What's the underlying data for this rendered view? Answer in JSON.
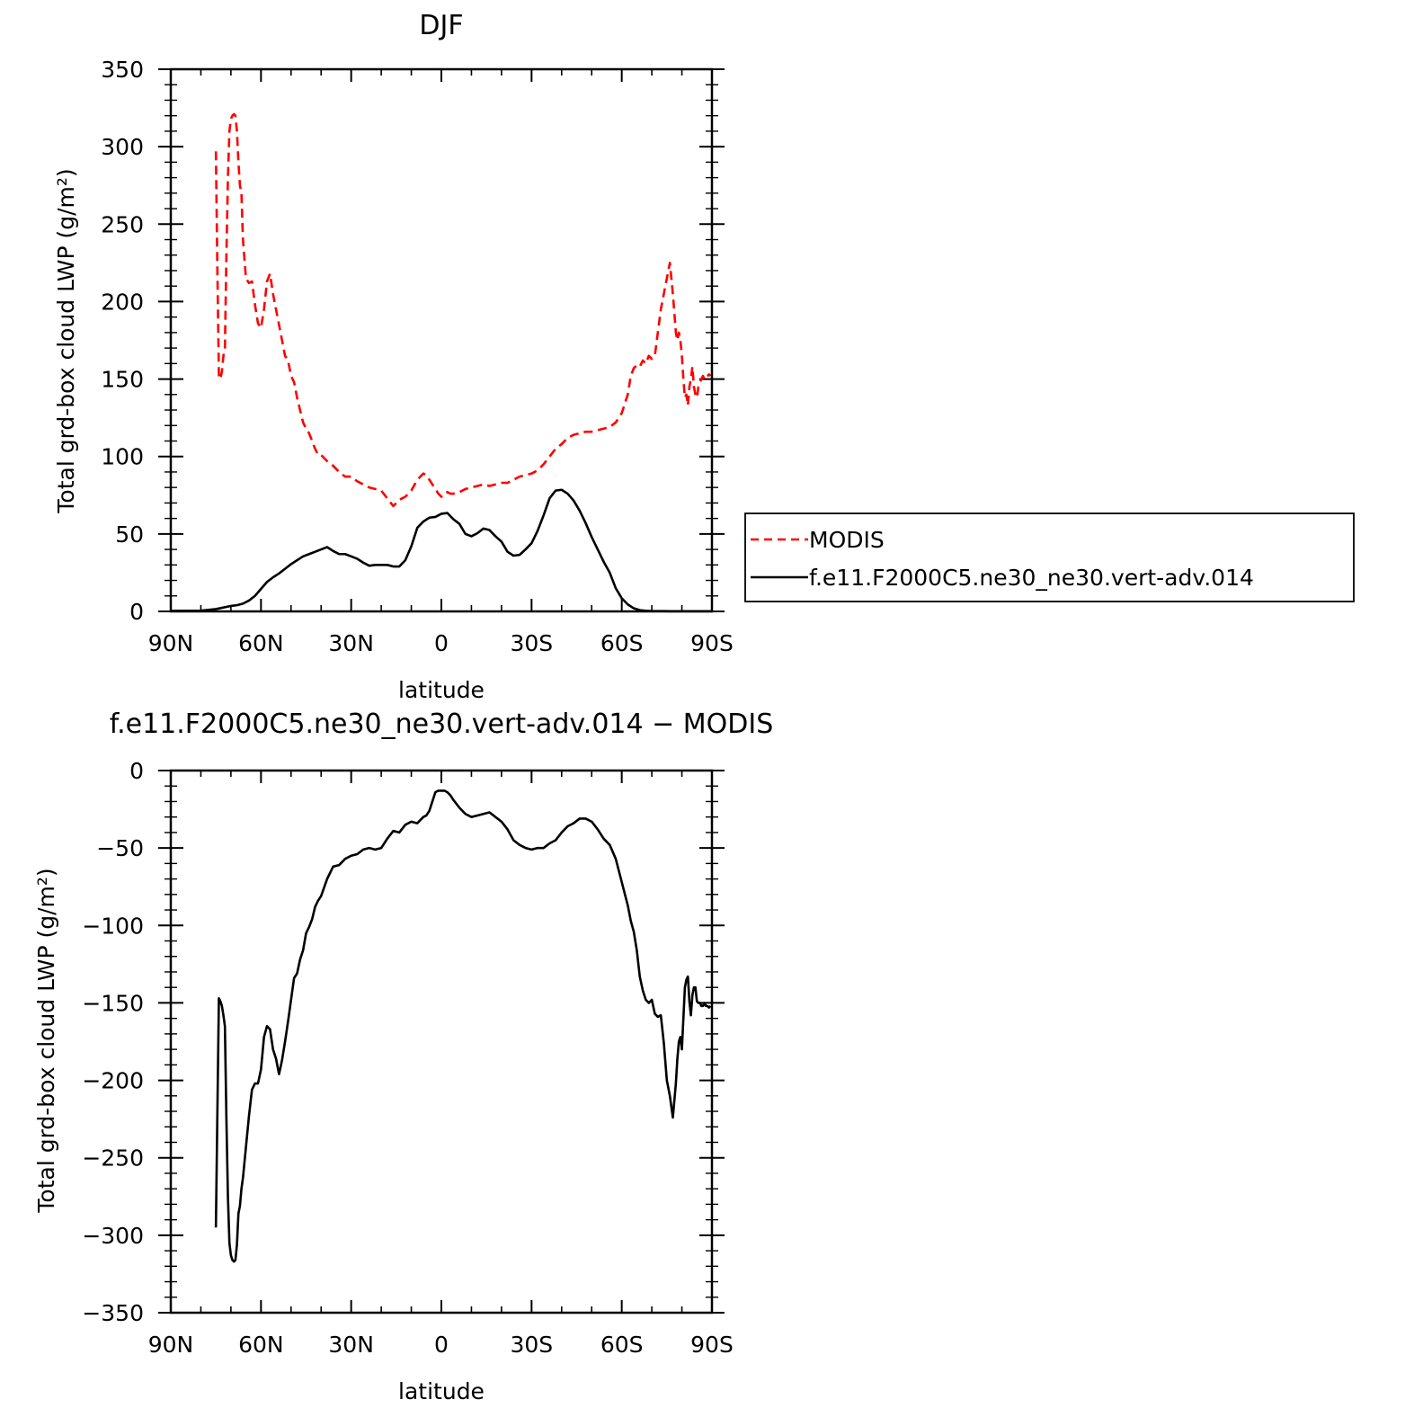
{
  "chart_data": [
    {
      "type": "line",
      "title": "DJF",
      "xlabel": "latitude",
      "ylabel": "Total grd-box cloud LWP (g/m²)",
      "xlim": [
        90,
        -90
      ],
      "ylim": [
        0,
        350
      ],
      "xticks": [
        90,
        60,
        30,
        0,
        -30,
        -60,
        -90
      ],
      "xtick_labels": [
        "90N",
        "60N",
        "30N",
        "0",
        "30S",
        "60S",
        "90S"
      ],
      "yticks": [
        0,
        50,
        100,
        150,
        200,
        250,
        300,
        350
      ],
      "ytick_labels": [
        "0",
        "50",
        "100",
        "150",
        "200",
        "250",
        "300",
        "350"
      ],
      "legend": [
        "MODIS",
        "f.e11.F2000C5.ne30_ne30.vert-adv.014"
      ],
      "series": [
        {
          "name": "MODIS",
          "color": "#ff0000",
          "dash": true,
          "x": [
            75.0,
            74.5,
            74.0,
            73.5,
            73.0,
            72.5,
            72.0,
            71.5,
            71.0,
            70.5,
            70.0,
            69.5,
            69.0,
            68.5,
            68.0,
            67.5,
            67.0,
            66.5,
            66.0,
            65.0,
            64.0,
            63.0,
            62.0,
            61.0,
            60.0,
            59.0,
            58.0,
            57.0,
            56.0,
            55.0,
            54.0,
            53.0,
            52.0,
            51.0,
            50.0,
            49.0,
            48.0,
            47.0,
            46.0,
            45.0,
            44.0,
            43.0,
            42.0,
            41.0,
            40.0,
            38.0,
            36.0,
            34.0,
            32.0,
            30.0,
            28.0,
            26.0,
            24.0,
            22.0,
            20.0,
            18.0,
            16.0,
            14.0,
            12.0,
            10.0,
            8.0,
            6.0,
            5.0,
            4.0,
            3.0,
            2.0,
            1.0,
            0.0,
            -1.0,
            -2.0,
            -3.0,
            -4.0,
            -6.0,
            -8.0,
            -10.0,
            -12.0,
            -14.0,
            -16.0,
            -18.0,
            -20.0,
            -22.0,
            -24.0,
            -26.0,
            -28.0,
            -30.0,
            -32.0,
            -34.0,
            -36.0,
            -38.0,
            -40.0,
            -42.0,
            -44.0,
            -46.0,
            -48.0,
            -50.0,
            -52.0,
            -54.0,
            -56.0,
            -58.0,
            -60.0,
            -62.0,
            -63.0,
            -64.0,
            -65.0,
            -66.0,
            -67.0,
            -68.0,
            -69.0,
            -70.0,
            -71.0,
            -72.0,
            -73.0,
            -74.0,
            -75.0,
            -76.0,
            -77.0,
            -78.0,
            -78.5,
            -79.0,
            -79.5,
            -80.0,
            -80.5,
            -81.0,
            -81.5,
            -82.0,
            -82.5,
            -83.0,
            -83.5,
            -84.0,
            -84.5,
            -85.0,
            -85.5,
            -86.0,
            -86.5,
            -87.0,
            -87.5,
            -88.0,
            -88.5,
            -89.0,
            -89.5
          ],
          "values": [
            297,
            220,
            152,
            150,
            155,
            165,
            170,
            230,
            280,
            310,
            318,
            320,
            321,
            320,
            310,
            290,
            275,
            270,
            240,
            215,
            212,
            213,
            198,
            186,
            183,
            195,
            213,
            218,
            205,
            195,
            185,
            175,
            165,
            162,
            152,
            148,
            138,
            130,
            122,
            118,
            115,
            110,
            105,
            101,
            101,
            97,
            94,
            90,
            87,
            87,
            84,
            82,
            80,
            79,
            78,
            73,
            68,
            72,
            74,
            78,
            85,
            89,
            88,
            85,
            82,
            79,
            76,
            74,
            76,
            77,
            76,
            76,
            77,
            79,
            80,
            81,
            82,
            81,
            82,
            83,
            83,
            85,
            87,
            88,
            89,
            91,
            95,
            100,
            105,
            108,
            112,
            114,
            115,
            116,
            116,
            117,
            118,
            119,
            122,
            128,
            140,
            152,
            157,
            159,
            158,
            162,
            160,
            165,
            163,
            165,
            180,
            195,
            205,
            215,
            225,
            205,
            180,
            175,
            180,
            175,
            165,
            150,
            138,
            140,
            133,
            145,
            150,
            158,
            145,
            140,
            138,
            145,
            148,
            150,
            152,
            150,
            152,
            152,
            153,
            152
          ],
          "note": ""
        },
        {
          "name": "f.e11.F2000C5.ne30_ne30.vert-adv.014",
          "color": "#000000",
          "dash": false,
          "x": [
            90,
            85,
            80,
            75,
            70,
            68,
            66,
            64,
            62,
            60,
            58,
            56,
            54,
            52,
            50,
            48,
            46,
            44,
            42,
            40,
            38,
            36,
            34,
            32,
            30,
            28,
            26,
            24,
            22,
            20,
            18,
            16,
            14,
            12,
            10,
            8,
            6,
            4,
            2,
            0,
            -2,
            -4,
            -6,
            -8,
            -10,
            -12,
            -14,
            -16,
            -18,
            -20,
            -22,
            -24,
            -26,
            -28,
            -30,
            -32,
            -34,
            -36,
            -38,
            -40,
            -42,
            -44,
            -46,
            -48,
            -50,
            -52,
            -54,
            -56,
            -58,
            -60,
            -62,
            -64,
            -66,
            -68,
            -70,
            -72,
            -74,
            -76,
            -78,
            -80,
            -82,
            -85,
            -90
          ],
          "values": [
            0.3,
            0.4,
            0.5,
            1.5,
            3.5,
            4.0,
            5.0,
            7.0,
            10.0,
            14.5,
            19.0,
            22.0,
            24.5,
            27.5,
            30.5,
            33.0,
            35.5,
            37.0,
            38.5,
            40.0,
            41.5,
            39.0,
            37.0,
            37.0,
            35.5,
            34.0,
            31.5,
            29.5,
            30.0,
            30.0,
            30.0,
            29.0,
            29.0,
            33.0,
            42.0,
            54.0,
            58.0,
            60.5,
            61.0,
            63.0,
            63.5,
            59.5,
            56.5,
            50.0,
            48.5,
            50.5,
            53.5,
            52.5,
            48.5,
            45.0,
            38.5,
            36.0,
            36.5,
            40.0,
            44.0,
            52.0,
            62.0,
            73.0,
            78.0,
            78.5,
            76.0,
            71.5,
            65.0,
            57.0,
            48.0,
            40.0,
            32.0,
            25.0,
            15.0,
            8.5,
            4.5,
            2.0,
            0.8,
            0.4,
            0.2,
            0.2,
            0.2,
            0.1,
            0.1,
            0.1,
            0.1,
            0.1,
            0.1
          ]
        }
      ]
    },
    {
      "type": "line",
      "title": "f.e11.F2000C5.ne30_ne30.vert-adv.014 − MODIS",
      "xlabel": "latitude",
      "ylabel": "Total grd-box cloud LWP (g/m²)",
      "xlim": [
        90,
        -90
      ],
      "ylim": [
        -350,
        0
      ],
      "xticks": [
        90,
        60,
        30,
        0,
        -30,
        -60,
        -90
      ],
      "xtick_labels": [
        "90N",
        "60N",
        "30N",
        "0",
        "30S",
        "60S",
        "90S"
      ],
      "yticks": [
        -350,
        -300,
        -250,
        -200,
        -150,
        -100,
        -50,
        0
      ],
      "ytick_labels": [
        "−350",
        "−300",
        "−250",
        "−200",
        "−150",
        "−100",
        "−50",
        "0"
      ],
      "series": [
        {
          "color": "#000000",
          "x": [
            75.0,
            74.5,
            74.0,
            73.5,
            73.0,
            72.5,
            72.0,
            71.5,
            71.0,
            70.5,
            70.0,
            69.5,
            69.0,
            68.5,
            68.0,
            67.5,
            67.0,
            66.5,
            66.0,
            65.0,
            64.0,
            63.0,
            62.0,
            61.0,
            60.0,
            59.0,
            58.0,
            57.0,
            56.0,
            55.0,
            54.0,
            53.0,
            52.0,
            51.0,
            50.0,
            49.0,
            48.0,
            47.0,
            46.0,
            45.0,
            44.0,
            43.0,
            42.0,
            41.0,
            40.0,
            38.0,
            36.0,
            34.0,
            32.0,
            30.0,
            28.0,
            26.0,
            24.0,
            22.0,
            20.0,
            18.0,
            16.0,
            14.0,
            12.0,
            10.0,
            8.0,
            6.0,
            5.0,
            4.0,
            3.0,
            2.0,
            1.0,
            0.0,
            -1.0,
            -2.0,
            -3.0,
            -4.0,
            -6.0,
            -8.0,
            -10.0,
            -12.0,
            -14.0,
            -16.0,
            -18.0,
            -20.0,
            -22.0,
            -24.0,
            -26.0,
            -28.0,
            -30.0,
            -32.0,
            -34.0,
            -36.0,
            -38.0,
            -40.0,
            -42.0,
            -44.0,
            -46.0,
            -48.0,
            -50.0,
            -52.0,
            -54.0,
            -56.0,
            -58.0,
            -60.0,
            -62.0,
            -63.0,
            -64.0,
            -65.0,
            -66.0,
            -67.0,
            -68.0,
            -69.0,
            -70.0,
            -71.0,
            -72.0,
            -73.0,
            -74.0,
            -75.0,
            -76.0,
            -77.0,
            -78.0,
            -78.5,
            -79.0,
            -79.5,
            -80.0,
            -80.5,
            -81.0,
            -81.5,
            -82.0,
            -82.5,
            -83.0,
            -83.5,
            -84.0,
            -84.5,
            -85.0,
            -85.5,
            -86.0,
            -86.5,
            -87.0,
            -87.5,
            -88.0,
            -88.5,
            -89.0,
            -89.5
          ],
          "values": [
            -295,
            -220,
            -147,
            -149,
            -152,
            -158,
            -165,
            -225,
            -275,
            -305,
            -313,
            -316,
            -317,
            -316,
            -306,
            -286,
            -281,
            -270,
            -263,
            -243,
            -223,
            -206,
            -202,
            -202,
            -193,
            -172,
            -165,
            -167,
            -180,
            -186,
            -196,
            -187,
            -175,
            -162,
            -148,
            -134,
            -131,
            -122,
            -116,
            -105,
            -101,
            -96,
            -88,
            -84,
            -81,
            -70,
            -62,
            -61,
            -57,
            -55,
            -54,
            -51,
            -50,
            -51,
            -50,
            -44,
            -39,
            -40,
            -35,
            -33,
            -34,
            -30,
            -29,
            -26,
            -20,
            -14,
            -13,
            -13,
            -13,
            -14,
            -16,
            -19,
            -24,
            -28,
            -30,
            -29,
            -28,
            -27,
            -30,
            -33,
            -38,
            -45,
            -48,
            -50,
            -51,
            -50,
            -50,
            -47,
            -45,
            -40,
            -36,
            -34,
            -31,
            -31,
            -33,
            -38,
            -44,
            -48,
            -57,
            -72,
            -87,
            -97,
            -104,
            -116,
            -133,
            -142,
            -148,
            -150,
            -148,
            -157,
            -159,
            -158,
            -176,
            -200,
            -210,
            -224,
            -202,
            -186,
            -175,
            -172,
            -180,
            -160,
            -140,
            -135,
            -133,
            -149,
            -158,
            -145,
            -140,
            -140,
            -149,
            -150,
            -150,
            -152,
            -152,
            -150,
            -152,
            -152,
            -153,
            -152
          ]
        }
      ]
    }
  ]
}
